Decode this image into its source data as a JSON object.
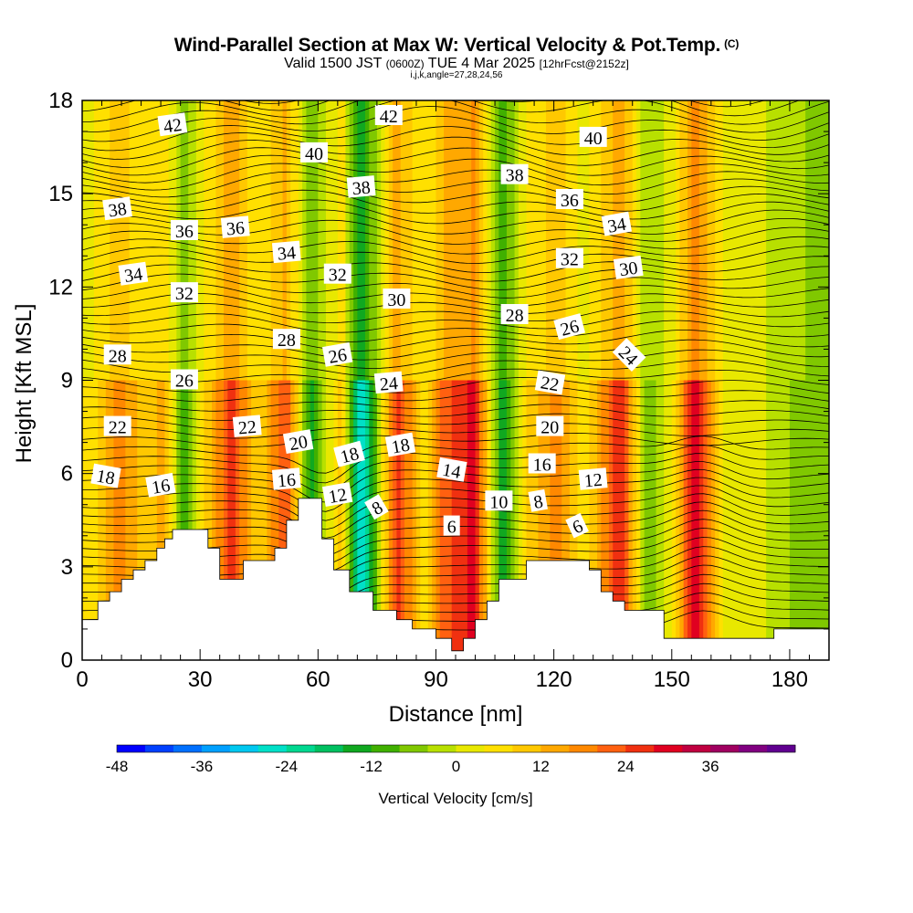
{
  "title": "Wind-Parallel Section at Max W: Vertical Velocity & Pot.Temp.",
  "title_suffix": "(C)",
  "subtitle_main": "Valid 1500 JST",
  "subtitle_small1": "(0600Z)",
  "subtitle_date": "TUE 4 Mar 2025",
  "subtitle_small2": "[12hrFcst@2152z]",
  "subtitle2": "i,j,k,angle=27,28,24,56",
  "chart_data": {
    "type": "heatmap",
    "xlabel": "Distance [nm]",
    "ylabel": "Height [Kft MSL]",
    "xlim": [
      0,
      190
    ],
    "ylim": [
      0,
      18
    ],
    "x_ticks": [
      "0",
      "30",
      "60",
      "90",
      "120",
      "150",
      "180"
    ],
    "y_ticks": [
      "0",
      "3",
      "6",
      "9",
      "12",
      "15",
      "18"
    ],
    "colorbar": {
      "title": "Vertical Velocity [cm/s]",
      "tick_labels": [
        "-48",
        "-36",
        "-24",
        "-12",
        "0",
        "12",
        "24",
        "36"
      ],
      "levels_min": -48,
      "levels_step": 4,
      "colors": [
        "#0000ff",
        "#0040ff",
        "#0070ff",
        "#00a0ff",
        "#00c8f0",
        "#00e0c8",
        "#00d890",
        "#00c060",
        "#10a820",
        "#40b000",
        "#80c800",
        "#b8e000",
        "#e8e800",
        "#ffe000",
        "#ffc800",
        "#ffa800",
        "#ff8800",
        "#ff6010",
        "#f03010",
        "#e00020",
        "#c00040",
        "#a00060",
        "#800080",
        "#600090"
      ]
    },
    "vertical_velocity_bands": [
      {
        "x": 3,
        "w": 7
      },
      {
        "x": 9,
        "w": 18
      },
      {
        "x": 16,
        "w": 9
      },
      {
        "x": 21,
        "w": 14
      },
      {
        "x": 26,
        "w": -12
      },
      {
        "x": 32,
        "w": 10
      },
      {
        "x": 38,
        "w": 26
      },
      {
        "x": 45,
        "w": 8
      },
      {
        "x": 52,
        "w": 24
      },
      {
        "x": 58,
        "w": -14
      },
      {
        "x": 66,
        "w": 12
      },
      {
        "x": 71,
        "w": -30
      },
      {
        "x": 80,
        "w": 26
      },
      {
        "x": 87,
        "w": 6
      },
      {
        "x": 92,
        "w": 22
      },
      {
        "x": 100,
        "w": 30
      },
      {
        "x": 107,
        "w": -18
      },
      {
        "x": 114,
        "w": 10
      },
      {
        "x": 121,
        "w": 18
      },
      {
        "x": 128,
        "w": 4
      },
      {
        "x": 137,
        "w": 28
      },
      {
        "x": 144,
        "w": -8
      },
      {
        "x": 150,
        "w": 4
      },
      {
        "x": 156,
        "w": 32
      },
      {
        "x": 164,
        "w": 2
      },
      {
        "x": 174,
        "w": 0
      },
      {
        "x": 185,
        "w": -8
      }
    ],
    "terrain": [
      [
        0,
        1.3
      ],
      [
        4,
        1.3
      ],
      [
        4,
        1.9
      ],
      [
        7,
        1.9
      ],
      [
        7,
        2.2
      ],
      [
        10,
        2.2
      ],
      [
        10,
        2.6
      ],
      [
        13,
        2.6
      ],
      [
        13,
        2.9
      ],
      [
        16,
        2.9
      ],
      [
        16,
        3.2
      ],
      [
        19,
        3.2
      ],
      [
        19,
        3.6
      ],
      [
        21,
        3.6
      ],
      [
        21,
        3.9
      ],
      [
        23,
        3.9
      ],
      [
        23,
        4.2
      ],
      [
        32,
        4.2
      ],
      [
        32,
        3.6
      ],
      [
        35,
        3.6
      ],
      [
        35,
        2.6
      ],
      [
        41,
        2.6
      ],
      [
        41,
        3.2
      ],
      [
        49,
        3.2
      ],
      [
        49,
        3.6
      ],
      [
        52,
        3.6
      ],
      [
        52,
        4.5
      ],
      [
        55,
        4.5
      ],
      [
        55,
        5.2
      ],
      [
        61,
        5.2
      ],
      [
        61,
        3.9
      ],
      [
        64,
        3.9
      ],
      [
        64,
        2.9
      ],
      [
        68,
        2.9
      ],
      [
        68,
        2.2
      ],
      [
        74,
        2.2
      ],
      [
        74,
        1.6
      ],
      [
        80,
        1.6
      ],
      [
        80,
        1.3
      ],
      [
        84,
        1.3
      ],
      [
        84,
        1.0
      ],
      [
        90,
        1.0
      ],
      [
        90,
        0.7
      ],
      [
        94,
        0.7
      ],
      [
        94,
        0.3
      ],
      [
        97,
        0.3
      ],
      [
        97,
        0.7
      ],
      [
        100,
        0.7
      ],
      [
        100,
        1.3
      ],
      [
        103,
        1.3
      ],
      [
        103,
        1.9
      ],
      [
        106,
        1.9
      ],
      [
        106,
        2.6
      ],
      [
        113,
        2.6
      ],
      [
        113,
        3.2
      ],
      [
        129,
        3.2
      ],
      [
        129,
        2.9
      ],
      [
        132,
        2.9
      ],
      [
        132,
        2.2
      ],
      [
        135,
        2.2
      ],
      [
        135,
        1.9
      ],
      [
        138,
        1.9
      ],
      [
        138,
        1.6
      ],
      [
        148,
        1.6
      ],
      [
        148,
        0.7
      ],
      [
        176,
        0.7
      ],
      [
        176,
        1.0
      ],
      [
        190,
        1.0
      ]
    ],
    "contour_labels": [
      {
        "text": "42",
        "x": 23,
        "y": 17.2,
        "rot": -8
      },
      {
        "text": "42",
        "x": 78,
        "y": 17.5,
        "rot": 0
      },
      {
        "text": "40",
        "x": 59,
        "y": 16.3,
        "rot": 0
      },
      {
        "text": "40",
        "x": 130,
        "y": 16.8,
        "rot": 0
      },
      {
        "text": "38",
        "x": 9,
        "y": 14.5,
        "rot": -8
      },
      {
        "text": "38",
        "x": 71,
        "y": 15.2,
        "rot": -5
      },
      {
        "text": "38",
        "x": 110,
        "y": 15.6,
        "rot": 0
      },
      {
        "text": "36",
        "x": 26,
        "y": 13.8,
        "rot": 0
      },
      {
        "text": "36",
        "x": 39,
        "y": 13.9,
        "rot": -5
      },
      {
        "text": "36",
        "x": 124,
        "y": 14.8,
        "rot": 0
      },
      {
        "text": "34",
        "x": 13,
        "y": 12.4,
        "rot": -8
      },
      {
        "text": "34",
        "x": 52,
        "y": 13.1,
        "rot": -5
      },
      {
        "text": "34",
        "x": 136,
        "y": 14.0,
        "rot": -10
      },
      {
        "text": "32",
        "x": 26,
        "y": 11.8,
        "rot": 0
      },
      {
        "text": "32",
        "x": 65,
        "y": 12.4,
        "rot": 0
      },
      {
        "text": "32",
        "x": 124,
        "y": 12.9,
        "rot": 0
      },
      {
        "text": "30",
        "x": 80,
        "y": 11.6,
        "rot": 0
      },
      {
        "text": "30",
        "x": 139,
        "y": 12.6,
        "rot": -8
      },
      {
        "text": "28",
        "x": 9,
        "y": 9.8,
        "rot": 0
      },
      {
        "text": "28",
        "x": 52,
        "y": 10.3,
        "rot": 0
      },
      {
        "text": "28",
        "x": 110,
        "y": 11.1,
        "rot": 0
      },
      {
        "text": "26",
        "x": 26,
        "y": 9.0,
        "rot": 0
      },
      {
        "text": "26",
        "x": 65,
        "y": 9.8,
        "rot": -10
      },
      {
        "text": "26",
        "x": 124,
        "y": 10.7,
        "rot": -15
      },
      {
        "text": "24",
        "x": 78,
        "y": 8.9,
        "rot": -5
      },
      {
        "text": "24",
        "x": 139,
        "y": 9.8,
        "rot": 45
      },
      {
        "text": "22",
        "x": 9,
        "y": 7.5,
        "rot": 0
      },
      {
        "text": "22",
        "x": 42,
        "y": 7.5,
        "rot": -5
      },
      {
        "text": "22",
        "x": 119,
        "y": 8.9,
        "rot": 10
      },
      {
        "text": "20",
        "x": 55,
        "y": 7.0,
        "rot": -10
      },
      {
        "text": "20",
        "x": 119,
        "y": 7.5,
        "rot": 0
      },
      {
        "text": "18",
        "x": 6,
        "y": 5.9,
        "rot": 10
      },
      {
        "text": "18",
        "x": 68,
        "y": 6.6,
        "rot": -15
      },
      {
        "text": "18",
        "x": 81,
        "y": 6.9,
        "rot": -10
      },
      {
        "text": "16",
        "x": 20,
        "y": 5.6,
        "rot": -10
      },
      {
        "text": "16",
        "x": 52,
        "y": 5.8,
        "rot": -5
      },
      {
        "text": "16",
        "x": 117,
        "y": 6.3,
        "rot": 0
      },
      {
        "text": "14",
        "x": 94,
        "y": 6.1,
        "rot": 10
      },
      {
        "text": "12",
        "x": 65,
        "y": 5.3,
        "rot": -10
      },
      {
        "text": "12",
        "x": 130,
        "y": 5.8,
        "rot": -5
      },
      {
        "text": "10",
        "x": 106,
        "y": 5.1,
        "rot": 0
      },
      {
        "text": "8",
        "x": 75,
        "y": 4.9,
        "rot": -30
      },
      {
        "text": "8",
        "x": 116,
        "y": 5.1,
        "rot": -10
      },
      {
        "text": "6",
        "x": 94,
        "y": 4.3,
        "rot": 0
      },
      {
        "text": "6",
        "x": 126,
        "y": 4.3,
        "rot": -25
      }
    ]
  }
}
